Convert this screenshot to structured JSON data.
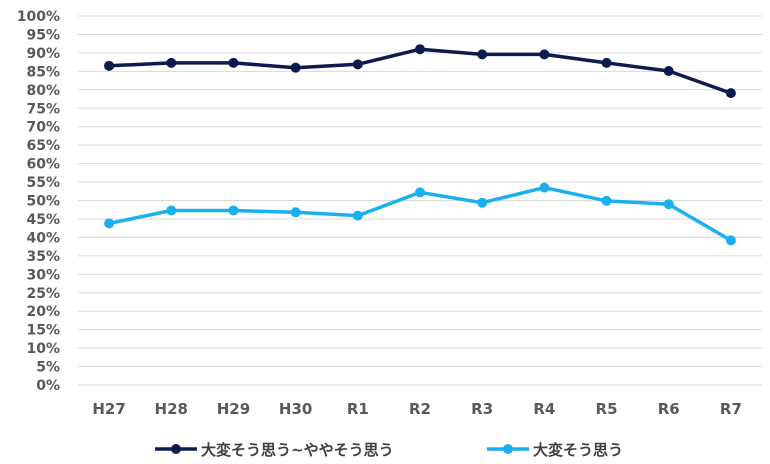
{
  "chart_data": {
    "type": "line",
    "title": "",
    "xlabel": "",
    "ylabel": "",
    "categories": [
      "H27",
      "H28",
      "H29",
      "H30",
      "R1",
      "R2",
      "R3",
      "R4",
      "R5",
      "R6",
      "R7"
    ],
    "y_ticks": [
      "0%",
      "5%",
      "10%",
      "15%",
      "20%",
      "25%",
      "30%",
      "35%",
      "40%",
      "45%",
      "50%",
      "55%",
      "60%",
      "65%",
      "70%",
      "75%",
      "80%",
      "85%",
      "90%",
      "95%",
      "100%"
    ],
    "ylim": [
      0,
      100
    ],
    "grid": true,
    "legend_position": "bottom",
    "series": [
      {
        "name": "大変そう思う~ややそう思う",
        "color": "#0d1b4f",
        "values": [
          86.5,
          87.3,
          87.3,
          86.0,
          86.9,
          91.0,
          89.6,
          89.6,
          87.3,
          85.1,
          79.1
        ]
      },
      {
        "name": "大変そう思う",
        "color": "#1ab0ef",
        "values": [
          43.8,
          47.3,
          47.3,
          46.8,
          45.9,
          52.2,
          49.4,
          53.5,
          49.9,
          49.0,
          39.2
        ]
      }
    ]
  }
}
